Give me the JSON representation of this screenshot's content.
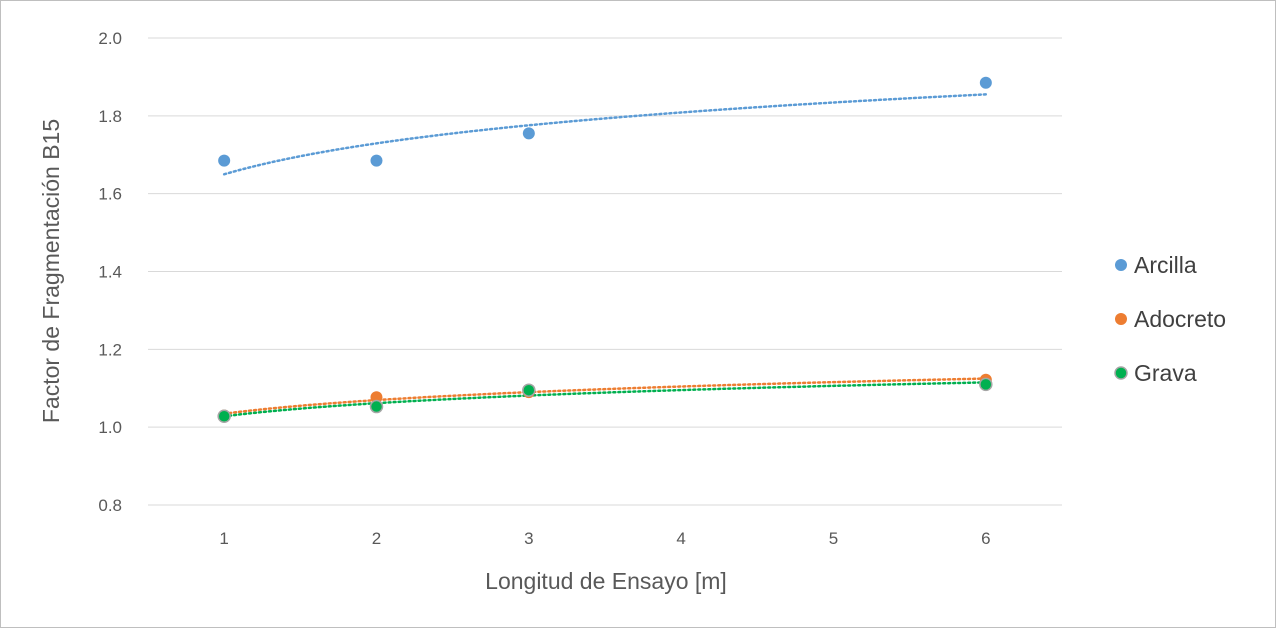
{
  "chart_data": {
    "type": "scatter",
    "title": "",
    "xlabel": "Longitud de Ensayo [m]",
    "ylabel": "Factor de Fragmentación B15",
    "xlim": [
      0.5,
      6.5
    ],
    "ylim": [
      0.8,
      2.0
    ],
    "x_ticks": [
      "1",
      "2",
      "3",
      "4",
      "5",
      "6"
    ],
    "y_ticks": [
      "0.8",
      "1.0",
      "1.2",
      "1.4",
      "1.6",
      "1.8",
      "2.0"
    ],
    "grid": true,
    "legend_position": "right",
    "series": [
      {
        "name": "Arcilla",
        "color": "#5b9bd5",
        "trendline": "dotted",
        "points": [
          [
            1,
            1.685
          ],
          [
            2,
            1.685
          ],
          [
            3,
            1.755
          ],
          [
            6,
            1.885
          ]
        ]
      },
      {
        "name": "Adocreto",
        "color": "#ed7d31",
        "trendline": "dotted",
        "points": [
          [
            1,
            1.03
          ],
          [
            2,
            1.077
          ],
          [
            3,
            1.09
          ],
          [
            6,
            1.122
          ]
        ]
      },
      {
        "name": "Grava",
        "color": "#00b050",
        "edge_color": "#a5a5a5",
        "trendline": "dotted",
        "points": [
          [
            1,
            1.028
          ],
          [
            2,
            1.053
          ],
          [
            3,
            1.095
          ],
          [
            6,
            1.11
          ]
        ]
      }
    ]
  }
}
